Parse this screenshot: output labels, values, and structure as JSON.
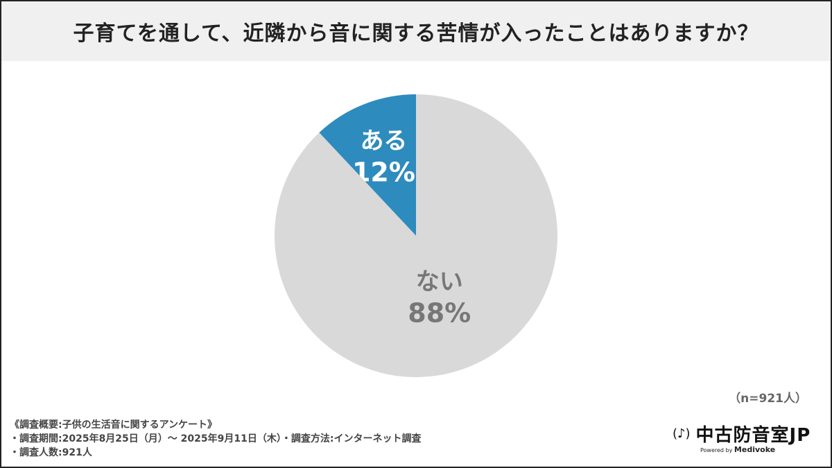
{
  "chart_data": {
    "type": "pie",
    "title": "子育てを通して、近隣から音に関する苦情が入ったことはありますか？",
    "slices": [
      {
        "label": "ある",
        "value": 12,
        "value_label": "12%",
        "color": "#2e8bbd",
        "text_color": "#ffffff"
      },
      {
        "label": "ない",
        "value": 88,
        "value_label": "88%",
        "color": "#d9d9d9",
        "text_color": "#777777"
      }
    ],
    "start": "top",
    "direction": "counterclockwise"
  },
  "sample_size": "（n=921人）",
  "notes": [
    "《調査概要:子供の生活音に関するアンケート》",
    "・調査期間:2025年8月25日（月）～ 2025年9月11日（木）・調査方法:インターネット調査",
    "・調査人数:921人"
  ],
  "logo": {
    "name": "中古防音室JP",
    "powered_by": "Powered by",
    "brand": "Medivoke"
  }
}
